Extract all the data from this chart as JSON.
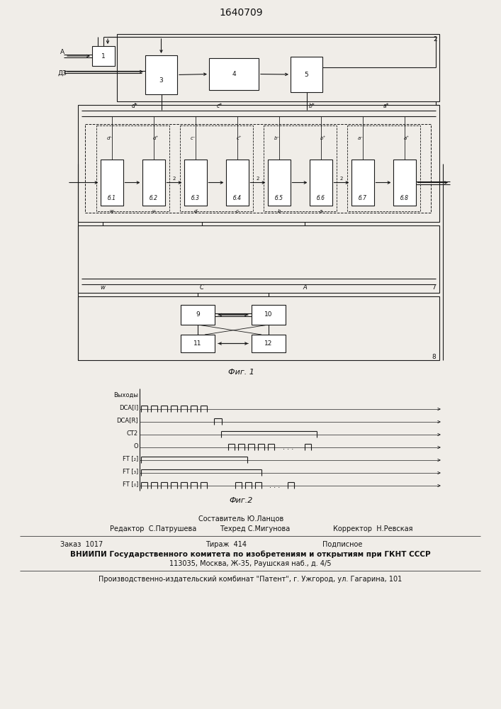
{
  "title": "1640709",
  "fig1_label": "Фиг. 1",
  "fig2_label": "Фиг.2",
  "bg_color": "#f0ede8",
  "line_color": "#1a1a1a",
  "box_color": "#ffffff",
  "block_labels_mid": [
    "б.1",
    "б.2",
    "б.3",
    "б.4",
    "б.5",
    "б.6",
    "б.7",
    "б.8"
  ],
  "timing_labels": [
    "Выходы",
    "DCA[І]",
    "DCA[R]",
    "СТ2",
    "O",
    "FT [₂]",
    "FT [₃]",
    "FT [₀]"
  ],
  "footer_line1": "Составитель Ю.Ланцов",
  "footer_line2_left": "Редактор  С.Патрушева",
  "footer_line2_mid": "Техред С.Мигунова",
  "footer_line2_right": "Корректор  Н.Ревская",
  "footer_line3_left": "Заказ  1017",
  "footer_line3_mid": "Тираж  414",
  "footer_line3_right": "Подписное",
  "footer_line4": "ВНИИПИ Государственного комитета по изобретениям и открытиям при ГКНТ СССР",
  "footer_line5": "113035, Москва, Ж-35, Раушская наб., д. 4/5",
  "footer_line6": "Производственно-издательский комбинат \"Патент\", г. Ужгород, ул. Гагарина, 101"
}
